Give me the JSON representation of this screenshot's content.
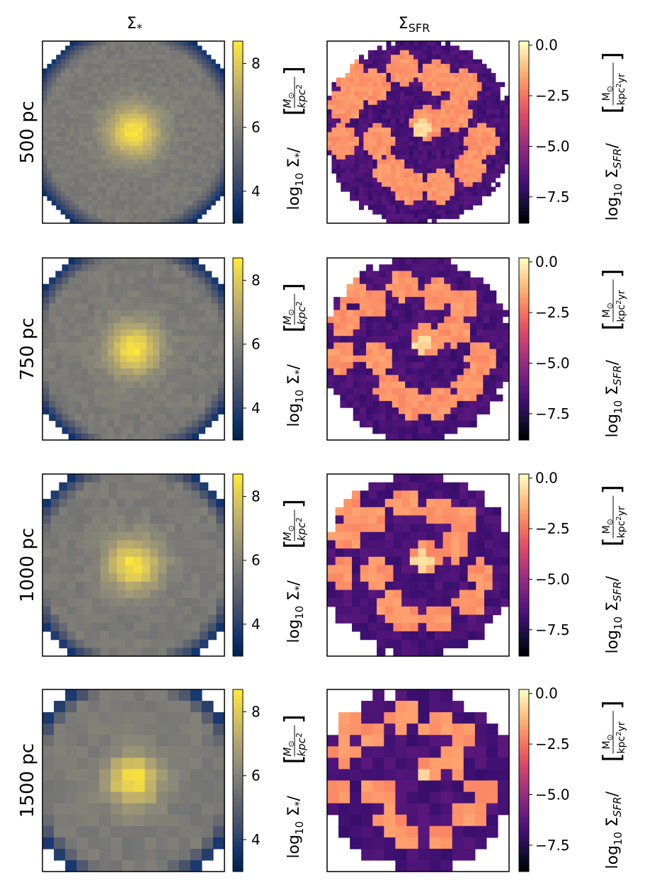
{
  "colors": {
    "cividis": [
      "#00224e",
      "#123570",
      "#3b496c",
      "#575d6d",
      "#707173",
      "#8a8779",
      "#a59c74",
      "#c3b369",
      "#e1cc55",
      "#fee838"
    ],
    "magma": [
      "#000004",
      "#140e36",
      "#3b0f70",
      "#641a80",
      "#8c2981",
      "#b73779",
      "#de4968",
      "#f7705c",
      "#fe9f6d",
      "#fecf92",
      "#fcfdbf"
    ],
    "stellar_bg": "#9e9a7e",
    "stellar_center": "#f2df3a",
    "stellar_edge": "#102a5c",
    "sfr_bg": "#6f2a86",
    "sfr_clump": "#f6866a",
    "sfr_peak": "#fbd3a0"
  },
  "chart_data": {
    "type": "heatmap",
    "columns": [
      {
        "key": "stellar",
        "title": "Σ",
        "title_sub": "*",
        "colormap": "cividis",
        "vmin": 3,
        "vmax": 8.7,
        "ticks": [
          4,
          6,
          8
        ],
        "tick_labels": [
          "4",
          "6",
          "8"
        ],
        "cbar_label": {
          "prefix": "log",
          "prefix_sub": "10",
          "sym": " Σ",
          "sym_sub": "*",
          "slash": "/",
          "numerator": "M",
          "numerator_sub": "⊙",
          "denominator": "kpc",
          "denominator_sup": "2"
        }
      },
      {
        "key": "sfr",
        "title": "Σ",
        "title_sub": "SFR",
        "colormap": "magma",
        "vmin": -8.8,
        "vmax": 0.2,
        "ticks": [
          0.0,
          -2.5,
          -5.0,
          -7.5
        ],
        "tick_labels": [
          "0.0",
          "−2.5",
          "−5.0",
          "−7.5"
        ],
        "cbar_label": {
          "prefix": "log",
          "prefix_sub": "10",
          "sym": " Σ",
          "sym_sub": "SFR",
          "slash": "/",
          "numerator": "M",
          "numerator_sub": "⊙",
          "denominator": "kpc",
          "denominator_sup": "2",
          "denominator_tail": "yr"
        }
      }
    ],
    "rows": [
      {
        "label": "500 pc",
        "grid": 40
      },
      {
        "label": "750 pc",
        "grid": 28
      },
      {
        "label": "1000 pc",
        "grid": 22
      },
      {
        "label": "1500 pc",
        "grid": 16
      }
    ],
    "stellar_surface": {
      "center_value": 8.6,
      "outer_value": 5.8,
      "edge_value": 3.3
    },
    "sfr_surface": {
      "background_value": -6.7,
      "clump_value": -1.8,
      "core_value": -0.5,
      "clumps": [
        [
          0.12,
          0.18
        ],
        [
          0.25,
          0.25
        ],
        [
          0.42,
          0.15
        ],
        [
          0.6,
          0.2
        ],
        [
          0.75,
          0.25
        ],
        [
          0.7,
          0.4
        ],
        [
          0.1,
          0.35
        ],
        [
          0.08,
          0.55
        ],
        [
          0.28,
          0.55
        ],
        [
          0.35,
          0.72
        ],
        [
          0.45,
          0.8
        ],
        [
          0.62,
          0.8
        ],
        [
          0.85,
          0.55
        ],
        [
          0.78,
          0.7
        ],
        [
          0.55,
          0.45
        ]
      ]
    }
  }
}
